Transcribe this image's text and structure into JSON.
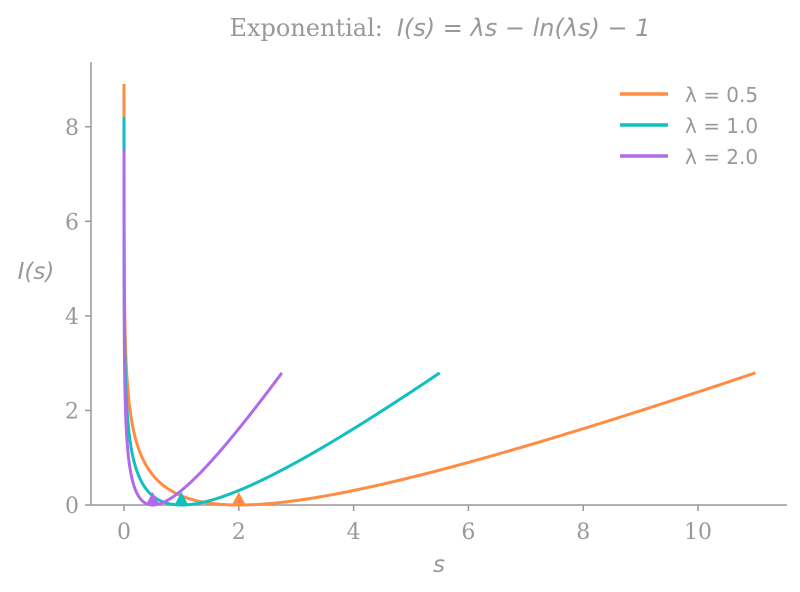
{
  "chart_data": {
    "type": "line",
    "title_prefix": "Exponential:",
    "title_formula": "I(s) = λs − ln(λs) − 1",
    "xlabel": "s",
    "ylabel": "I(s)",
    "xlim": [
      -0.575,
      11.55
    ],
    "ylim": [
      0,
      9.37
    ],
    "xticks": [
      0,
      2,
      4,
      6,
      8,
      10
    ],
    "yticks": [
      0,
      2,
      4,
      6,
      8
    ],
    "grid": false,
    "legend_position": "top-right",
    "series": [
      {
        "name": "λ = 0.5",
        "lambda": 0.5,
        "s_range": [
          0.0001,
          11
        ],
        "color": "#ff8c42",
        "minimum": {
          "s": 2,
          "I": 0
        }
      },
      {
        "name": "λ = 1.0",
        "lambda": 1.0,
        "s_range": [
          0.0001,
          5.5
        ],
        "color": "#12bfbf",
        "minimum": {
          "s": 1,
          "I": 0
        }
      },
      {
        "name": "λ = 2.0",
        "lambda": 2.0,
        "s_range": [
          0.0001,
          2.75
        ],
        "color": "#b06be8",
        "minimum": {
          "s": 0.5,
          "I": 0
        }
      }
    ],
    "axis_color": "#999999"
  }
}
